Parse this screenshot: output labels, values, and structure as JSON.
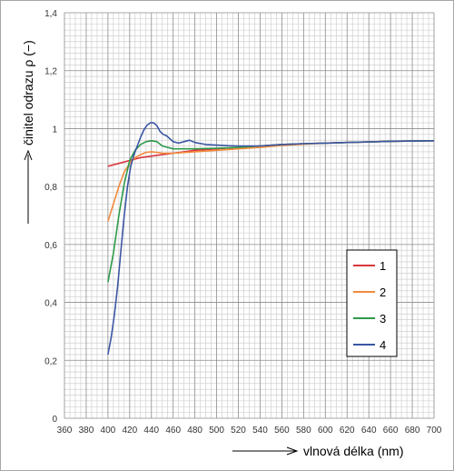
{
  "chart_data": {
    "type": "line",
    "xlabel": "vlnová délka (nm)",
    "ylabel": "činitel odrazu ρ (−)",
    "xlim": [
      360,
      700
    ],
    "ylim": [
      0,
      1.4
    ],
    "x_ticks": [
      "360",
      "380",
      "400",
      "420",
      "440",
      "460",
      "480",
      "500",
      "520",
      "540",
      "560",
      "580",
      "600",
      "620",
      "640",
      "660",
      "680",
      "700"
    ],
    "y_ticks": [
      "0",
      "0,2",
      "0,4",
      "0,6",
      "0,8",
      "1",
      "1,2",
      "1,4"
    ],
    "grid": true,
    "legend_position": "right-middle",
    "series": [
      {
        "name": "1",
        "color": "#d9363e",
        "x": [
          400,
          410,
          420,
          430,
          440,
          450,
          460,
          470,
          480,
          500,
          520,
          540,
          560,
          580,
          600,
          620,
          640,
          660,
          680,
          700
        ],
        "y": [
          0.87,
          0.88,
          0.89,
          0.9,
          0.905,
          0.91,
          0.915,
          0.92,
          0.925,
          0.93,
          0.935,
          0.94,
          0.945,
          0.948,
          0.95,
          0.952,
          0.954,
          0.956,
          0.957,
          0.958
        ]
      },
      {
        "name": "2",
        "color": "#f38a3c",
        "x": [
          400,
          405,
          410,
          415,
          420,
          425,
          430,
          435,
          440,
          445,
          450,
          460,
          480,
          500,
          520,
          540,
          560,
          580,
          600,
          620,
          640,
          660,
          680,
          700
        ],
        "y": [
          0.68,
          0.74,
          0.8,
          0.85,
          0.88,
          0.9,
          0.91,
          0.918,
          0.92,
          0.918,
          0.915,
          0.915,
          0.92,
          0.925,
          0.93,
          0.935,
          0.942,
          0.946,
          0.95,
          0.952,
          0.954,
          0.956,
          0.957,
          0.958
        ]
      },
      {
        "name": "3",
        "color": "#2e9a4a",
        "x": [
          400,
          405,
          410,
          415,
          420,
          425,
          430,
          435,
          440,
          445,
          450,
          455,
          460,
          470,
          480,
          500,
          520,
          540,
          560,
          580,
          600,
          620,
          640,
          660,
          680,
          700
        ],
        "y": [
          0.47,
          0.57,
          0.7,
          0.81,
          0.89,
          0.925,
          0.945,
          0.955,
          0.958,
          0.955,
          0.94,
          0.935,
          0.93,
          0.93,
          0.93,
          0.932,
          0.935,
          0.94,
          0.945,
          0.948,
          0.95,
          0.952,
          0.954,
          0.956,
          0.957,
          0.958
        ]
      },
      {
        "name": "4",
        "color": "#3b56a3",
        "x": [
          400,
          403,
          406,
          409,
          412,
          415,
          418,
          421,
          424,
          427,
          430,
          433,
          436,
          439,
          442,
          445,
          448,
          451,
          454,
          457,
          460,
          465,
          470,
          475,
          480,
          490,
          500,
          510,
          520,
          540,
          560,
          580,
          600,
          620,
          640,
          660,
          680,
          700
        ],
        "y": [
          0.22,
          0.28,
          0.36,
          0.46,
          0.58,
          0.7,
          0.8,
          0.87,
          0.91,
          0.94,
          0.97,
          0.995,
          1.012,
          1.02,
          1.02,
          1.01,
          0.99,
          0.98,
          0.975,
          0.965,
          0.955,
          0.95,
          0.955,
          0.96,
          0.952,
          0.945,
          0.943,
          0.941,
          0.94,
          0.94,
          0.945,
          0.948,
          0.95,
          0.952,
          0.954,
          0.956,
          0.957,
          0.958
        ]
      }
    ]
  }
}
